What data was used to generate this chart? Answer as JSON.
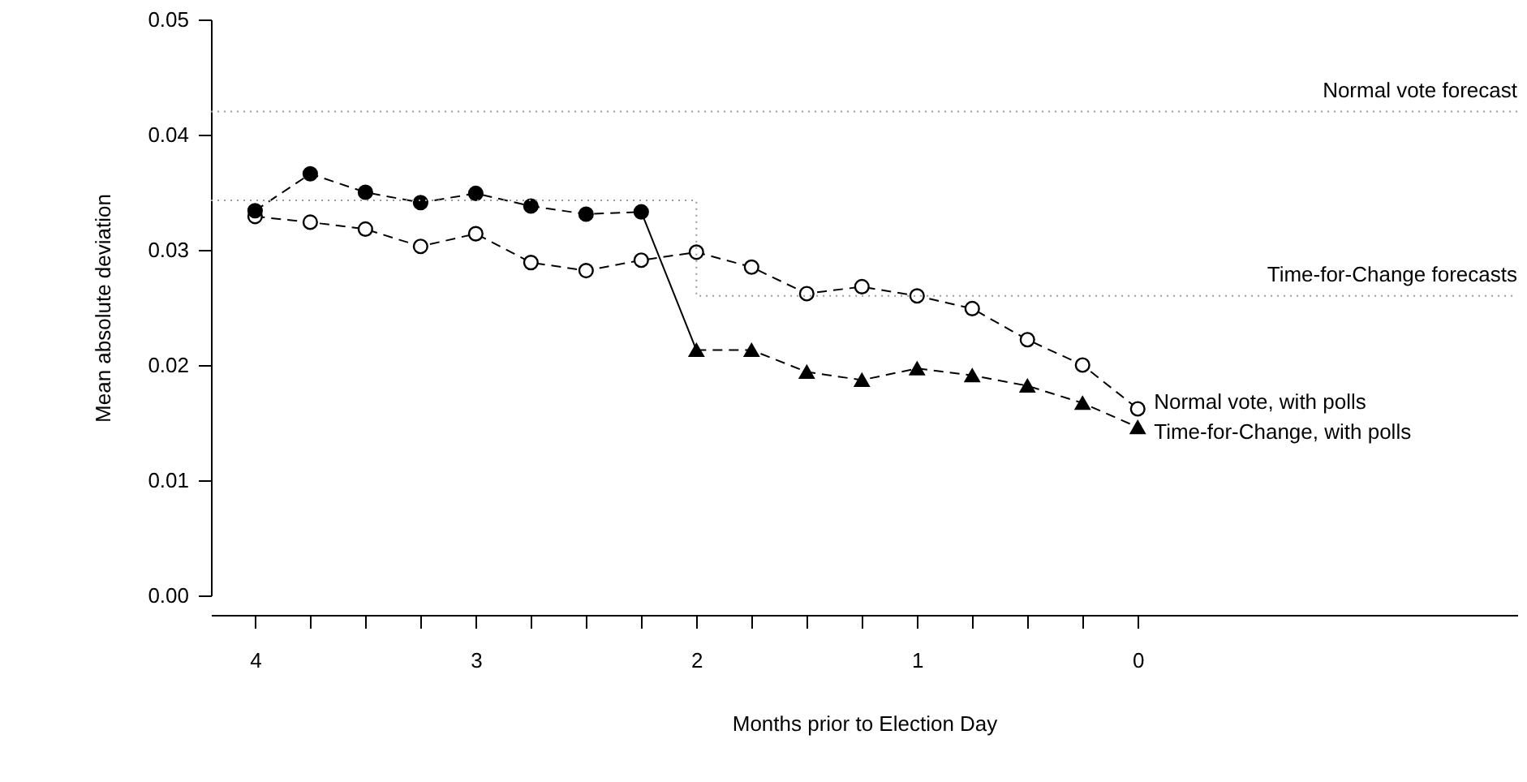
{
  "chart_data": {
    "type": "line",
    "xlabel": "Months prior to Election Day",
    "ylabel": "Mean absolute deviation",
    "xlim": [
      4.2,
      -1.72
    ],
    "xticks": [
      4,
      {
        "value": 3.75,
        "label": null
      },
      {
        "value": 3.5,
        "label": null
      },
      {
        "value": 3.25,
        "label": null
      },
      3,
      {
        "value": 2.75,
        "label": null
      },
      {
        "value": 2.5,
        "label": null
      },
      {
        "value": 2.25,
        "label": null
      },
      2,
      {
        "value": 1.75,
        "label": null
      },
      {
        "value": 1.5,
        "label": null
      },
      {
        "value": 1.25,
        "label": null
      },
      1,
      {
        "value": 0.75,
        "label": null
      },
      {
        "value": 0.5,
        "label": null
      },
      {
        "value": 0.25,
        "label": null
      },
      0
    ],
    "ylim": [
      0,
      0.05
    ],
    "yticks": [
      {
        "value": 0,
        "label": "0.00"
      },
      {
        "value": 0.01,
        "label": "0.01"
      },
      {
        "value": 0.02,
        "label": "0.02"
      },
      {
        "value": 0.03,
        "label": "0.03"
      },
      {
        "value": 0.04,
        "label": "0.04"
      },
      {
        "value": 0.05,
        "label": "0.05"
      }
    ],
    "line_style": "dashed",
    "grid": false,
    "ref_lines": [
      {
        "axis": "y",
        "value": 0.042,
        "label": "Normal vote forecast",
        "color": "#999999",
        "line_style": "dotted"
      }
    ],
    "series": [
      {
        "name": "Normal vote, with polls",
        "color": "#000000",
        "marker": "circle",
        "x": [
          4,
          3.75,
          3.5,
          3.25,
          3,
          2.75,
          2.5,
          2.25,
          2,
          1.75,
          1.5,
          1.25,
          1,
          0.75,
          0.5,
          0.25,
          0
        ],
        "values": [
          0.0329,
          0.0324,
          0.0318,
          0.0303,
          0.0314,
          0.0289,
          0.0282,
          0.0291,
          0.0298,
          0.0285,
          0.0262,
          0.0268,
          0.026,
          0.0249,
          0.0222,
          0.02,
          0.0162
        ]
      },
      {
        "color": "#000000",
        "marker": "circle",
        "x": [
          4,
          3.75,
          3.5,
          3.25,
          3,
          2.75,
          2.5,
          2.25
        ],
        "values": [
          0.0334,
          0.0366,
          0.035,
          0.0341,
          0.0349,
          0.0338,
          0.0331,
          0.0333
        ]
      },
      {
        "color": "#000000",
        "line_style": "solid",
        "x": [
          2.25,
          2
        ],
        "values": [
          0.0333,
          0.0213
        ]
      },
      {
        "name": "Time-for-Change, with polls",
        "color": "#000000",
        "marker": "triangle",
        "x": [
          2,
          1.75,
          1.5,
          1.25,
          1,
          0.75,
          0.5,
          0.25,
          0
        ],
        "values": [
          0.0213,
          0.0213,
          0.0194,
          0.0187,
          0.0197,
          0.0191,
          0.0182,
          0.0167,
          0.0146
        ]
      },
      {
        "name": "Time-for-Change forecasts",
        "type": "step",
        "color": "#999999",
        "marker": "none",
        "line_style": "dotted",
        "x": [
          4.2,
          2,
          -1.72
        ],
        "values": [
          0.0343,
          0.026,
          0.026
        ]
      }
    ]
  }
}
